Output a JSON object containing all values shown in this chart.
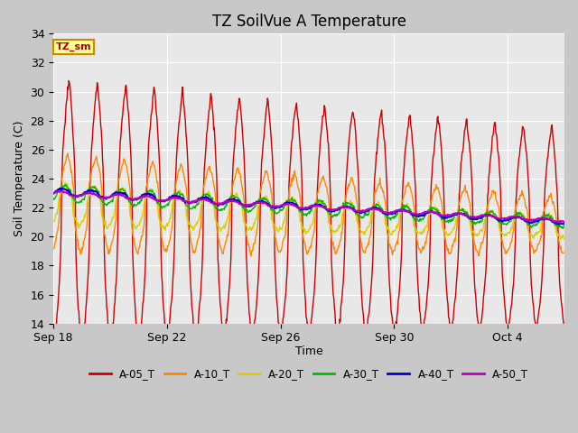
{
  "title": "TZ SoilVue A Temperature",
  "ylabel": "Soil Temperature (C)",
  "xlabel": "Time",
  "ylim": [
    14,
    34
  ],
  "yticks": [
    14,
    16,
    18,
    20,
    22,
    24,
    26,
    28,
    30,
    32,
    34
  ],
  "x_tick_labels": [
    "Sep 18",
    "Sep 22",
    "Sep 26",
    "Sep 30",
    "Oct 4"
  ],
  "x_tick_positions": [
    0,
    4,
    8,
    12,
    16
  ],
  "background_color": "#c8c8c8",
  "plot_bg_color": "#e8e8e8",
  "series": {
    "A-05_T": {
      "color": "#cc0000",
      "lw": 1.0
    },
    "A-10_T": {
      "color": "#ff8800",
      "lw": 1.0
    },
    "A-20_T": {
      "color": "#ddcc00",
      "lw": 1.0
    },
    "A-30_T": {
      "color": "#00bb00",
      "lw": 1.0
    },
    "A-40_T": {
      "color": "#0000cc",
      "lw": 1.5
    },
    "A-50_T": {
      "color": "#bb00bb",
      "lw": 1.5
    }
  },
  "annotation_text": "TZ_sm",
  "annotation_bg": "#ffff99",
  "annotation_border": "#cc8800",
  "figsize": [
    6.4,
    4.8
  ],
  "dpi": 100
}
